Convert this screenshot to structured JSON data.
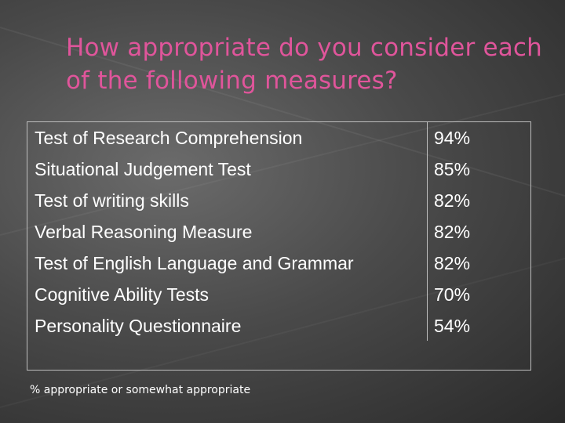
{
  "title": "How appropriate do you consider each of the following measures?",
  "rows": [
    {
      "label": "Test of Research Comprehension",
      "value": "94%"
    },
    {
      "label": "Situational Judgement Test",
      "value": "85%"
    },
    {
      "label": "Test of writing skills",
      "value": "82%"
    },
    {
      "label": "Verbal Reasoning Measure",
      "value": "82%"
    },
    {
      "label": "Test of English Language and Grammar",
      "value": "82%"
    },
    {
      "label": "Cognitive Ability Tests",
      "value": "70%"
    },
    {
      "label": "Personality Questionnaire",
      "value": "54%"
    }
  ],
  "footnote": "% appropriate or somewhat appropriate"
}
